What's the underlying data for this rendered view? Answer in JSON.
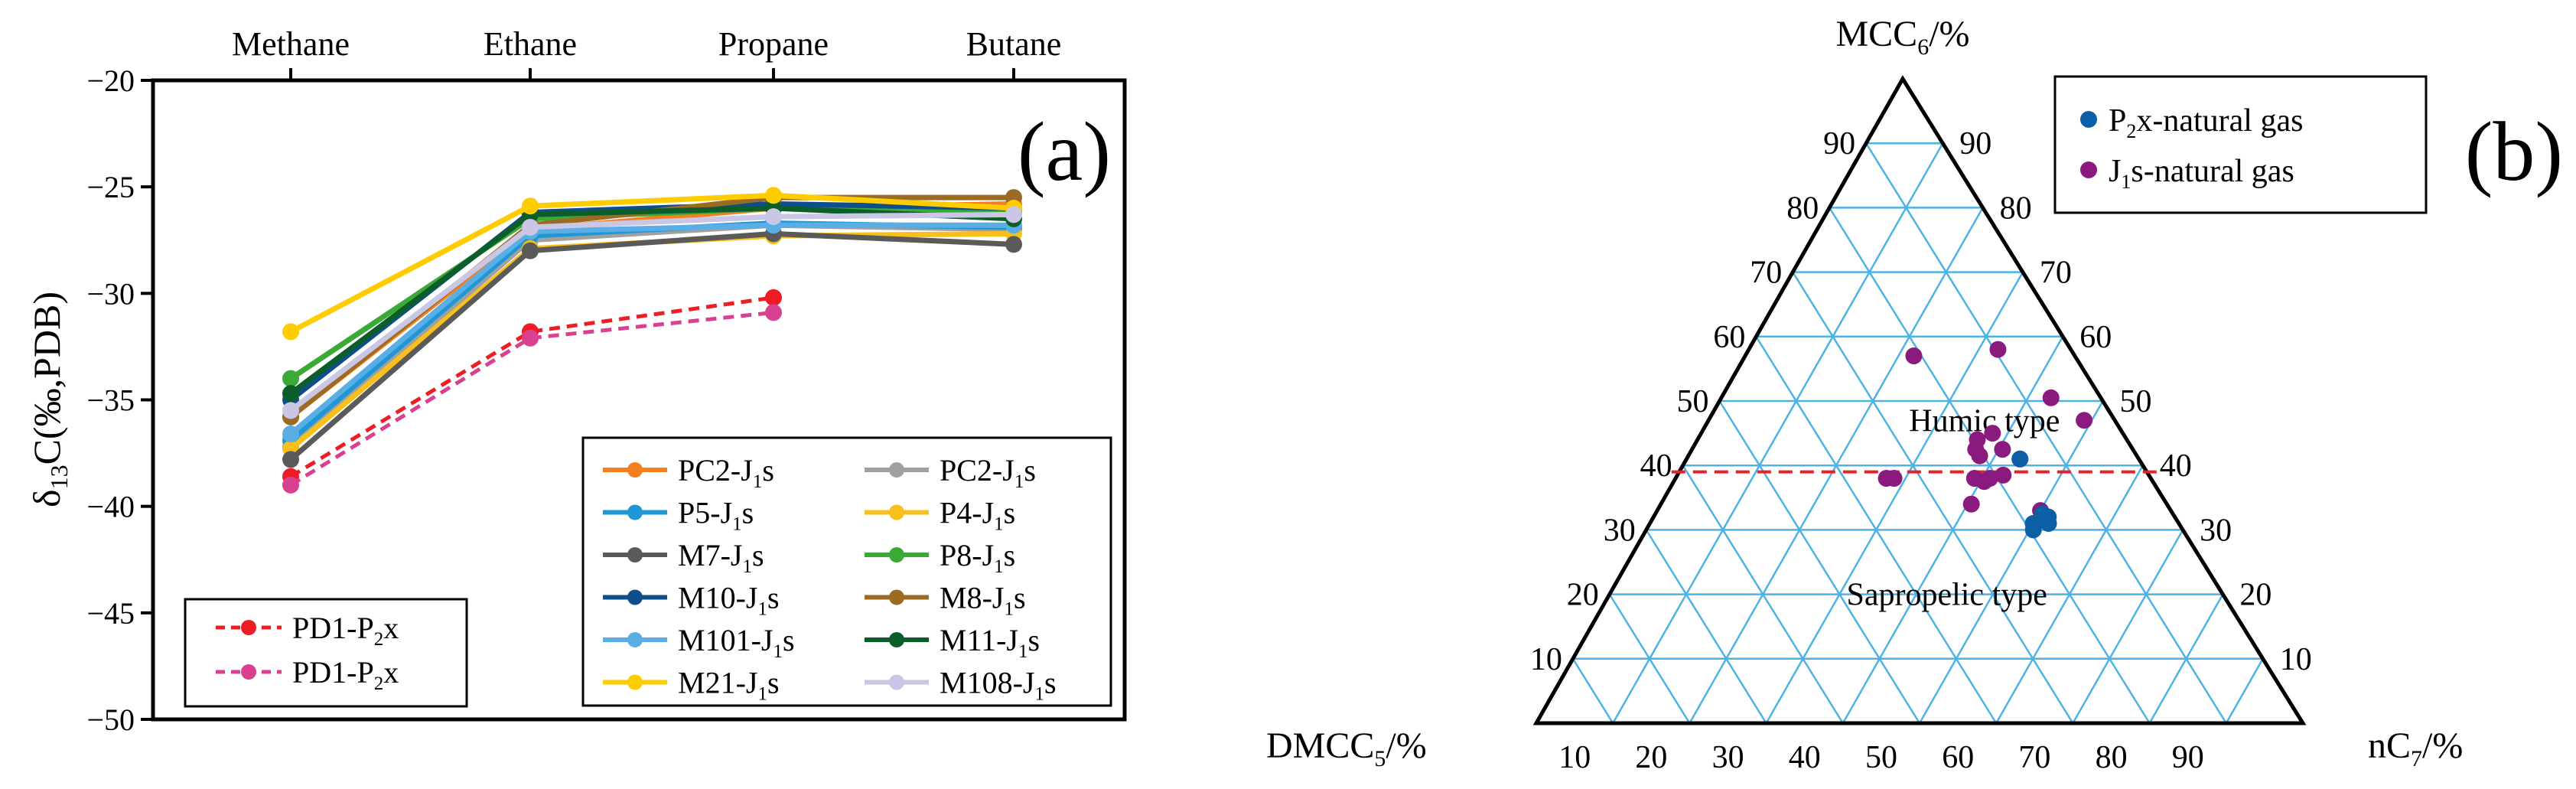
{
  "chart_data": [
    {
      "panel_label": "(a)",
      "type": "line",
      "title": "",
      "xlabel": "",
      "ylabel": {
        "pre": "δ",
        "sub": "13",
        "post": "C(‰,PDB)"
      },
      "ylim": [
        -50,
        -20
      ],
      "yticks": [
        -20,
        -25,
        -30,
        -35,
        -40,
        -45,
        -50
      ],
      "ytick_labels": [
        "−20",
        "−25",
        "−30",
        "−35",
        "−40",
        "−45",
        "−50"
      ],
      "categories": [
        "Methane",
        "Ethane",
        "Propane",
        "Butane"
      ],
      "series": [
        {
          "name": "PC2-J1s",
          "label_main": "PC2-J",
          "label_sub": "1",
          "label_tail": "s",
          "color": "#f47f20",
          "dashed": false,
          "values": [
            -35.8,
            -27.0,
            -26.0,
            -25.8
          ]
        },
        {
          "name": "PC2-J1s",
          "label_main": "PC2-J",
          "label_sub": "1",
          "label_tail": "s",
          "color": "#a0a0a0",
          "dashed": false,
          "values": [
            -37.2,
            -27.5,
            -26.8,
            -27.0
          ]
        },
        {
          "name": "P5-J1s",
          "label_main": "P5-J",
          "label_sub": "1",
          "label_tail": "s",
          "color": "#1f97d4",
          "dashed": false,
          "values": [
            -36.9,
            -27.3,
            -26.7,
            -26.9
          ]
        },
        {
          "name": "P4-J1s",
          "label_main": "P4-J",
          "label_sub": "1",
          "label_tail": "s",
          "color": "#f9bf1a",
          "dashed": false,
          "values": [
            -37.3,
            -27.9,
            -27.3,
            -27.2
          ]
        },
        {
          "name": "M7-J1s",
          "label_main": "M7-J",
          "label_sub": "1",
          "label_tail": "s",
          "color": "#5a5a5a",
          "dashed": false,
          "values": [
            -37.8,
            -28.0,
            -27.2,
            -27.7
          ]
        },
        {
          "name": "P8-J1s",
          "label_main": "P8-J",
          "label_sub": "1",
          "label_tail": "s",
          "color": "#3aa935",
          "dashed": false,
          "values": [
            -34.0,
            -26.5,
            -26.0,
            -26.2
          ]
        },
        {
          "name": "M10-J1s",
          "label_main": "M10-J",
          "label_sub": "1",
          "label_tail": "s",
          "color": "#104e8b",
          "dashed": false,
          "values": [
            -35.0,
            -26.2,
            -25.8,
            -26.0
          ]
        },
        {
          "name": "M8-J1s",
          "label_main": "M8-J",
          "label_sub": "1",
          "label_tail": "s",
          "color": "#9c6b23",
          "dashed": false,
          "values": [
            -35.8,
            -26.8,
            -25.5,
            -25.5
          ]
        },
        {
          "name": "M101-J1s",
          "label_main": "M101-J",
          "label_sub": "1",
          "label_tail": "s",
          "color": "#5aaee6",
          "dashed": false,
          "values": [
            -36.6,
            -27.1,
            -26.8,
            -26.8
          ]
        },
        {
          "name": "M11-J1s",
          "label_main": "M11-J",
          "label_sub": "1",
          "label_tail": "s",
          "color": "#0b5d29",
          "dashed": false,
          "values": [
            -34.7,
            -26.3,
            -26.0,
            -26.5
          ]
        },
        {
          "name": "M21-J1s",
          "label_main": "M21-J",
          "label_sub": "1",
          "label_tail": "s",
          "color": "#ffcc00",
          "dashed": false,
          "values": [
            -31.8,
            -25.9,
            -25.4,
            -26.0
          ]
        },
        {
          "name": "M108-J1s",
          "label_main": "M108-J",
          "label_sub": "1",
          "label_tail": "s",
          "color": "#c9c6e6",
          "dashed": false,
          "values": [
            -35.5,
            -26.9,
            -26.4,
            -26.3
          ]
        },
        {
          "name": "PD1-P2x",
          "label_main": "PD1-P",
          "label_sub": "2",
          "label_tail": "x",
          "color": "#ee1c24",
          "dashed": true,
          "values": [
            -38.6,
            -31.8,
            -30.2,
            null
          ]
        },
        {
          "name": "PD1-P2x",
          "label_main": "PD1-P",
          "label_sub": "2",
          "label_tail": "x",
          "color": "#d9408f",
          "dashed": true,
          "values": [
            -39.0,
            -32.1,
            -30.9,
            null
          ]
        }
      ],
      "legend_main_location": "bottom-right",
      "legend_main_order": [
        0,
        1,
        2,
        3,
        4,
        5,
        6,
        7,
        8,
        9,
        10,
        11
      ],
      "legend_dashed_location": "bottom-left",
      "legend_dashed_order": [
        12,
        13
      ],
      "grid": false
    },
    {
      "panel_label": "(b)",
      "type": "scatter",
      "subtype": "ternary",
      "axes": {
        "top": {
          "pre": "MCC",
          "sub": "6",
          "post": "/%"
        },
        "left": {
          "pre": "DMCC",
          "sub": "5",
          "post": "/%"
        },
        "right": {
          "pre": "nC",
          "sub": "7",
          "post": "/%"
        }
      },
      "tick_labels": [
        "10",
        "20",
        "30",
        "40",
        "50",
        "60",
        "70",
        "80",
        "90"
      ],
      "left_edge_labels": [
        "90",
        "80",
        "70",
        "60",
        "50",
        "40",
        "30",
        "20",
        "10"
      ],
      "right_edge_labels": [
        "90",
        "80",
        "70",
        "60",
        "50",
        "40",
        "30",
        "20",
        "10"
      ],
      "bottom_edge_labels": [
        "10",
        "20",
        "30",
        "40",
        "50",
        "60",
        "70",
        "80",
        "90"
      ],
      "grid_step": 10,
      "grid_color": "#4db3e6",
      "boundary_mcc6": 39,
      "boundary_color": "#e8202a",
      "region_labels": {
        "upper": "Humic type",
        "lower": "Sapropelic type"
      },
      "region_positions": {
        "upper": {
          "mcc6": 47,
          "nc7": 36
        },
        "lower": {
          "mcc6": 20,
          "nc7": 44
        }
      },
      "series": [
        {
          "name": "P2x-natural gas",
          "label_main": "P",
          "label_sub": "2",
          "label_tail": "x-natural gas",
          "color": "#0a5fa5",
          "points": [
            {
              "mcc6": 41.0,
              "nc7": 43.5
            },
            {
              "mcc6": 32.5,
              "nc7": 50.5
            },
            {
              "mcc6": 32.0,
              "nc7": 51.5
            },
            {
              "mcc6": 31.0,
              "nc7": 50.0
            },
            {
              "mcc6": 31.0,
              "nc7": 52.0
            },
            {
              "mcc6": 30.0,
              "nc7": 50.5
            }
          ]
        },
        {
          "name": "J1s-natural gas",
          "label_main": "J",
          "label_sub": "1",
          "label_tail": "s-natural gas",
          "color": "#8b1a7e",
          "points": [
            {
              "mcc6": 57.0,
              "nc7": 22.0
            },
            {
              "mcc6": 58.0,
              "nc7": 32.5
            },
            {
              "mcc6": 50.5,
              "nc7": 43.0
            },
            {
              "mcc6": 47.0,
              "nc7": 49.0
            },
            {
              "mcc6": 45.0,
              "nc7": 38.0
            },
            {
              "mcc6": 42.5,
              "nc7": 37.0
            },
            {
              "mcc6": 41.0,
              "nc7": 43.5
            },
            {
              "mcc6": 38.0,
              "nc7": 27.5
            },
            {
              "mcc6": 38.0,
              "nc7": 28.5
            },
            {
              "mcc6": 38.0,
              "nc7": 39.0
            },
            {
              "mcc6": 38.0,
              "nc7": 41.0
            },
            {
              "mcc6": 38.5,
              "nc7": 42.5
            },
            {
              "mcc6": 37.5,
              "nc7": 40.5
            },
            {
              "mcc6": 34.0,
              "nc7": 40.5
            },
            {
              "mcc6": 41.5,
              "nc7": 38.0
            },
            {
              "mcc6": 44.0,
              "nc7": 36.5
            },
            {
              "mcc6": 42.5,
              "nc7": 40.5
            },
            {
              "mcc6": 33.0,
              "nc7": 50.0
            }
          ]
        }
      ],
      "legend_location": "top-right",
      "legend_order": [
        0,
        1
      ]
    }
  ]
}
